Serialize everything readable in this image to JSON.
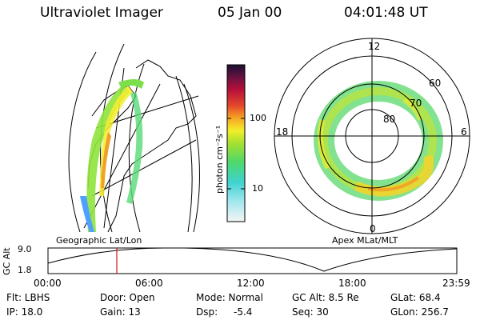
{
  "header": {
    "instrument": "Ultraviolet Imager",
    "date": "05 Jan 00",
    "time": "04:01:48 UT"
  },
  "colorbar": {
    "unit_label": "photon cm⁻²s⁻¹",
    "ticks": [
      "100",
      "10"
    ]
  },
  "polar_plot": {
    "mlt_labels": [
      "12",
      "18",
      "6",
      "0"
    ],
    "lat_labels": [
      "60",
      "70",
      "80"
    ]
  },
  "map_labels": {
    "left": "Geographic Lat/Lon",
    "right": "Apex MLat/MLT"
  },
  "altitude_plot": {
    "ylabel": "GC Alt",
    "y_ticks": [
      "9.0",
      "1.8"
    ],
    "x_ticks": [
      "00:00",
      "06:00",
      "12:00",
      "18:00",
      "23:59"
    ],
    "current_time_marker": "04:01"
  },
  "params": {
    "filter": "Flt: LBHS",
    "ip": "IP: 18.0",
    "door": "Door: Open",
    "gain": "Gain: 13",
    "mode": "Mode: Normal",
    "dsp_label": "Dsp:",
    "dsp_value": "-5.4",
    "gc_alt": "GC Alt: 8.5 Re",
    "seq": "Seq: 30",
    "glat": "GLat: 68.4",
    "glon": "GLon: 256.7"
  }
}
